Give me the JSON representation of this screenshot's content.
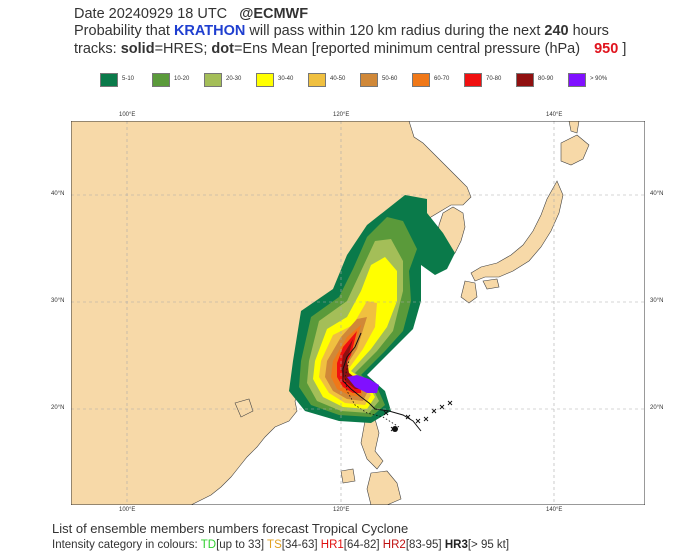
{
  "header": {
    "line1_prefix": "Date 20240929 18 UTC",
    "line1_brand": "@ECMWF",
    "line2_prefix": "Probability that ",
    "storm_name": "KRATHON",
    "line2_mid": " will pass within 120 km radius during the next ",
    "hours": "240",
    "line2_suffix": " hours",
    "line3_prefix": "tracks: ",
    "solid_word": "solid",
    "line3_mid1": "=HRES; ",
    "dot_word": "dot",
    "line3_mid2": "=Ens Mean [reported minimum central pressure (hPa) ",
    "pressure": "950",
    "line3_suffix": " ]"
  },
  "legend": [
    {
      "label": "5-10",
      "color": "#0a7a4a"
    },
    {
      "label": "10-20",
      "color": "#5a9a3a"
    },
    {
      "label": "20-30",
      "color": "#a4be58"
    },
    {
      "label": "30-40",
      "color": "#ffff00"
    },
    {
      "label": "40-50",
      "color": "#f0c040"
    },
    {
      "label": "50-60",
      "color": "#d08838"
    },
    {
      "label": "60-70",
      "color": "#f07818"
    },
    {
      "label": "70-80",
      "color": "#f01010"
    },
    {
      "label": "80-90",
      "color": "#901010"
    },
    {
      "label": "> 90%",
      "color": "#8010ff"
    }
  ],
  "map": {
    "lon_labels": [
      "100°E",
      "120°E",
      "140°E"
    ],
    "lat_labels": [
      "40°N",
      "30°N",
      "20°N"
    ],
    "land_color": "#f7d9a8",
    "sea_color": "#ffffff"
  },
  "footer": {
    "line1": "List of ensemble members numbers forecast Tropical Cyclone",
    "intensity_prefix": "Intensity category in colours: ",
    "td": "TD",
    "td_range": "[up to 33]",
    "ts": "TS",
    "ts_range": "[34-63]",
    "hr1": "HR1",
    "hr1_range": "[64-82]",
    "hr2": "HR2",
    "hr2_range": "[83-95]",
    "hr3": "HR3",
    "hr3_range": "[> 95 kt]"
  }
}
